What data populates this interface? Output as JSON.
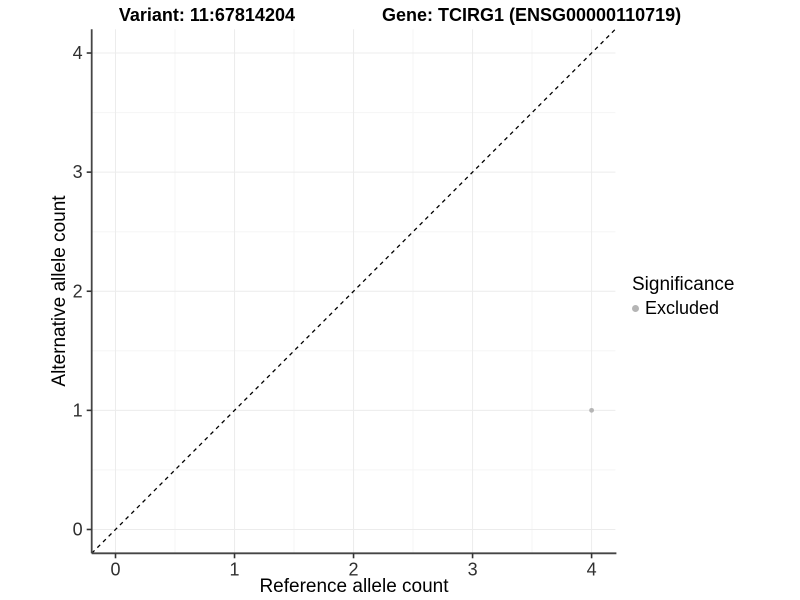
{
  "header": {
    "title_left": "Variant: 11:67814204",
    "title_right": "Gene: TCIRG1 (ENSG00000110719)"
  },
  "chart_data": {
    "type": "scatter",
    "title": "Variant: 11:67814204   Gene: TCIRG1 (ENSG00000110719)",
    "xlabel": "Reference allele count",
    "ylabel": "Alternative allele count",
    "xlim": [
      -0.2,
      4.2
    ],
    "ylim": [
      -0.2,
      4.2
    ],
    "xticks": [
      0,
      1,
      2,
      3,
      4
    ],
    "yticks": [
      0,
      1,
      2,
      3,
      4
    ],
    "minor_ticks": [
      0.5,
      1.5,
      2.5,
      3.5
    ],
    "grid": "major-and-minor",
    "series": [
      {
        "name": "Excluded",
        "color": "#b5b5b5",
        "points": [
          {
            "x": 4,
            "y": 1
          }
        ]
      }
    ],
    "abline": {
      "slope": 1,
      "intercept": 0,
      "style": "dashed",
      "color": "#000000"
    },
    "legend": {
      "title": "Significance",
      "position": "right",
      "entries": [
        {
          "label": "Excluded",
          "color": "#b5b5b5"
        }
      ]
    }
  },
  "colors": {
    "background": "#ffffff",
    "grid_major": "#ececec",
    "grid_minor": "#f5f5f5",
    "axis_line": "#454545",
    "tick_mark": "#333333",
    "tick_label": "#303030",
    "point": "#b5b5b5"
  }
}
